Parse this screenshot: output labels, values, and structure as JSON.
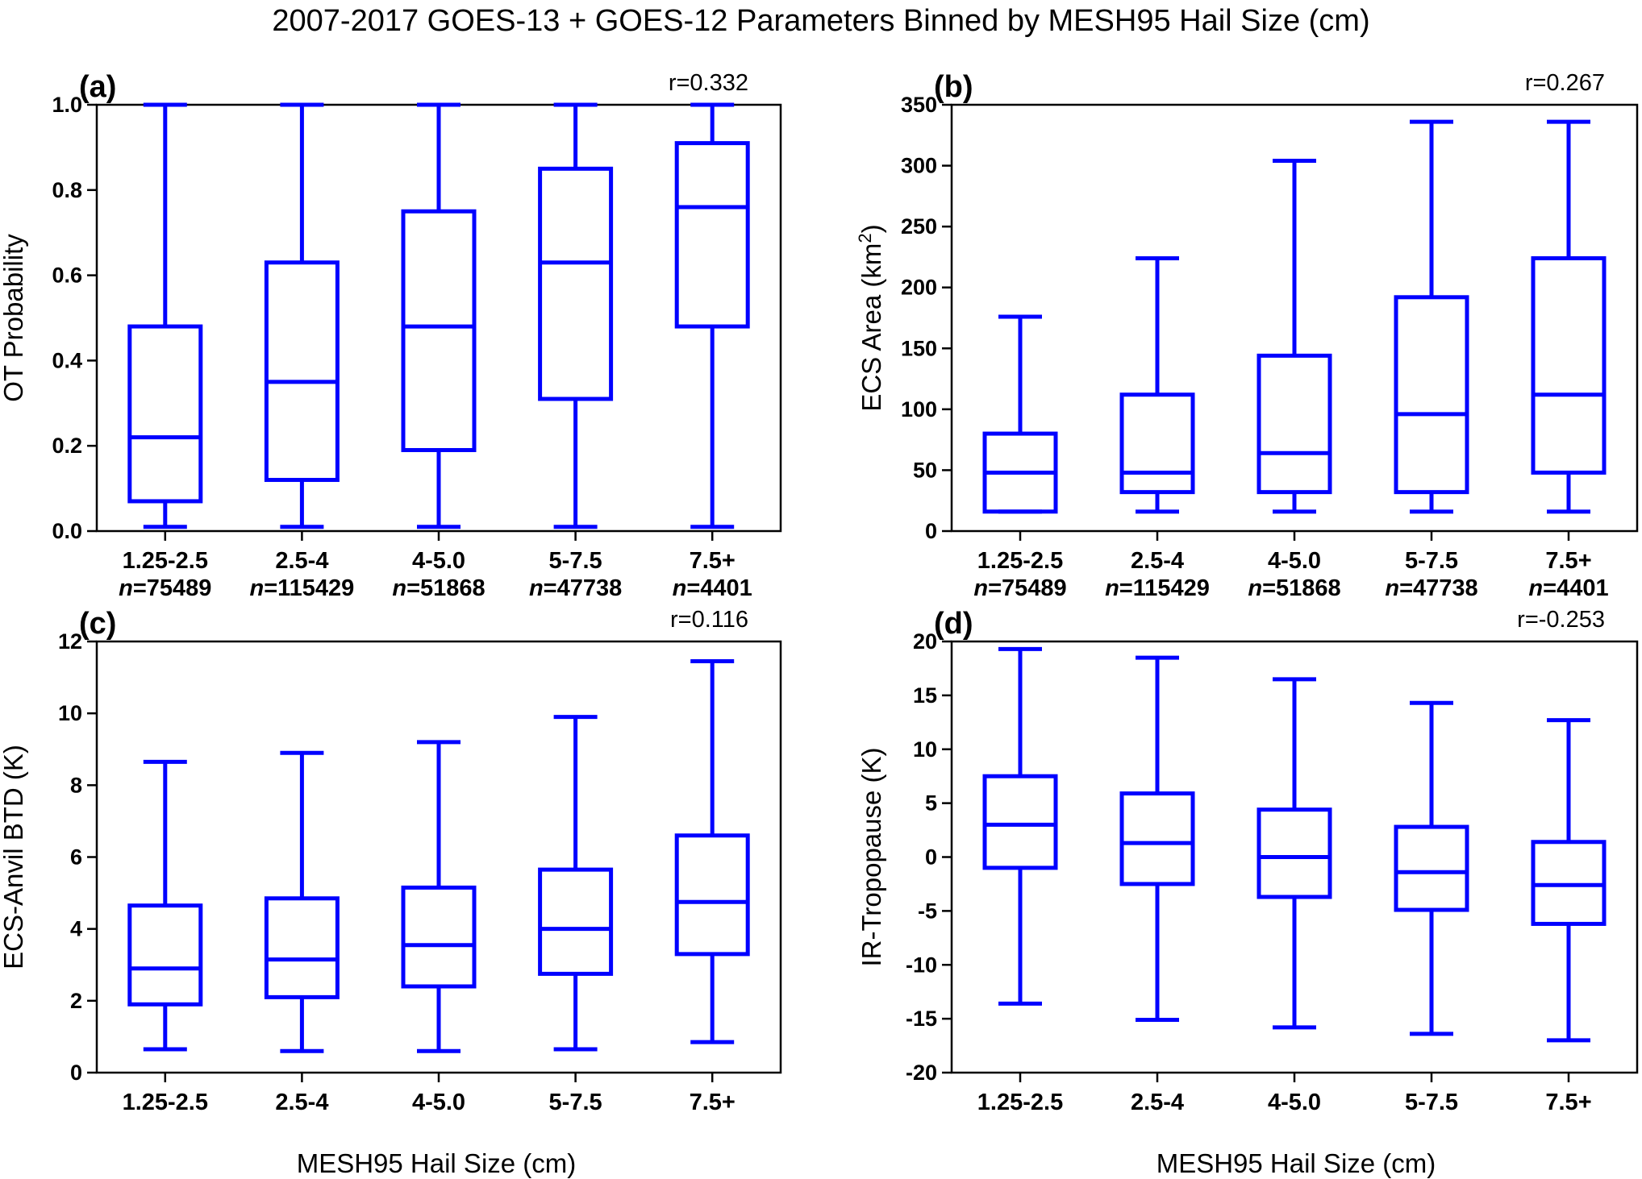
{
  "suptitle": "2007-2017 GOES-13 + GOES-12 Parameters Binned by MESH95 Hail Size (cm)",
  "xlabel": "MESH95 Hail Size (cm)",
  "colors": {
    "box": "#0000ff",
    "axes": "#000000"
  },
  "chart_data": [
    {
      "type": "box",
      "panel": "(a)",
      "r_label": "r=0.332",
      "ylabel": "OT Probability",
      "ylim": [
        0.0,
        1.0
      ],
      "yticks": [
        "0.0",
        "0.2",
        "0.4",
        "0.6",
        "0.8",
        "1.0"
      ],
      "ytick_values": [
        0.0,
        0.2,
        0.4,
        0.6,
        0.8,
        1.0
      ],
      "categories": [
        "1.25-2.5",
        "2.5-4",
        "4-5.0",
        "5-7.5",
        "7.5+"
      ],
      "n_prefix": "n",
      "n_values": [
        "=75489",
        "=115429",
        "=51868",
        "=47738",
        "=4401"
      ],
      "boxes": [
        {
          "whislo": 0.01,
          "q1": 0.07,
          "med": 0.22,
          "q3": 0.48,
          "whishi": 1.0
        },
        {
          "whislo": 0.01,
          "q1": 0.12,
          "med": 0.35,
          "q3": 0.63,
          "whishi": 1.0
        },
        {
          "whislo": 0.01,
          "q1": 0.19,
          "med": 0.48,
          "q3": 0.75,
          "whishi": 1.0
        },
        {
          "whislo": 0.01,
          "q1": 0.31,
          "med": 0.63,
          "q3": 0.85,
          "whishi": 1.0
        },
        {
          "whislo": 0.01,
          "q1": 0.48,
          "med": 0.76,
          "q3": 0.91,
          "whishi": 1.0
        }
      ]
    },
    {
      "type": "box",
      "panel": "(b)",
      "r_label": "r=0.267",
      "ylabel": "ECS Area (km",
      "ylabel_sup": "2",
      "ylabel_end": ")",
      "ylim": [
        0,
        350
      ],
      "yticks": [
        "0",
        "50",
        "100",
        "150",
        "200",
        "250",
        "300",
        "350"
      ],
      "ytick_values": [
        0,
        50,
        100,
        150,
        200,
        250,
        300,
        350
      ],
      "categories": [
        "1.25-2.5",
        "2.5-4",
        "4-5.0",
        "5-7.5",
        "7.5+"
      ],
      "n_prefix": "n",
      "n_values": [
        "=75489",
        "=115429",
        "=51868",
        "=47738",
        "=4401"
      ],
      "boxes": [
        {
          "whislo": 16,
          "q1": 16,
          "med": 48,
          "q3": 80,
          "whishi": 176
        },
        {
          "whislo": 16,
          "q1": 32,
          "med": 48,
          "q3": 112,
          "whishi": 224
        },
        {
          "whislo": 16,
          "q1": 32,
          "med": 64,
          "q3": 144,
          "whishi": 304
        },
        {
          "whislo": 16,
          "q1": 32,
          "med": 96,
          "q3": 192,
          "whishi": 336
        },
        {
          "whislo": 16,
          "q1": 48,
          "med": 112,
          "q3": 224,
          "whishi": 336
        }
      ]
    },
    {
      "type": "box",
      "panel": "(c)",
      "r_label": "r=0.116",
      "ylabel": "ECS-Anvil BTD (K)",
      "ylim": [
        0,
        12
      ],
      "yticks": [
        "0",
        "2",
        "4",
        "6",
        "8",
        "10",
        "12"
      ],
      "ytick_values": [
        0,
        2,
        4,
        6,
        8,
        10,
        12
      ],
      "categories": [
        "1.25-2.5",
        "2.5-4",
        "4-5.0",
        "5-7.5",
        "7.5+"
      ],
      "boxes": [
        {
          "whislo": 0.65,
          "q1": 1.9,
          "med": 2.9,
          "q3": 4.65,
          "whishi": 8.65
        },
        {
          "whislo": 0.6,
          "q1": 2.1,
          "med": 3.15,
          "q3": 4.85,
          "whishi": 8.9
        },
        {
          "whislo": 0.6,
          "q1": 2.4,
          "med": 3.55,
          "q3": 5.15,
          "whishi": 9.2
        },
        {
          "whislo": 0.65,
          "q1": 2.75,
          "med": 4.0,
          "q3": 5.65,
          "whishi": 9.9
        },
        {
          "whislo": 0.85,
          "q1": 3.3,
          "med": 4.75,
          "q3": 6.6,
          "whishi": 11.45
        }
      ]
    },
    {
      "type": "box",
      "panel": "(d)",
      "r_label": "r=-0.253",
      "ylabel": "IR-Tropopause (K)",
      "ylim": [
        -20,
        20
      ],
      "yticks": [
        "-20",
        "-15",
        "-10",
        "-5",
        "0",
        "5",
        "10",
        "15",
        "20"
      ],
      "ytick_values": [
        -20,
        -15,
        -10,
        -5,
        0,
        5,
        10,
        15,
        20
      ],
      "categories": [
        "1.25-2.5",
        "2.5-4",
        "4-5.0",
        "5-7.5",
        "7.5+"
      ],
      "boxes": [
        {
          "whislo": -13.6,
          "q1": -1.0,
          "med": 3.0,
          "q3": 7.5,
          "whishi": 19.3
        },
        {
          "whislo": -15.1,
          "q1": -2.5,
          "med": 1.3,
          "q3": 5.9,
          "whishi": 18.5
        },
        {
          "whislo": -15.8,
          "q1": -3.7,
          "med": 0.0,
          "q3": 4.4,
          "whishi": 16.5
        },
        {
          "whislo": -16.4,
          "q1": -4.9,
          "med": -1.4,
          "q3": 2.8,
          "whishi": 14.3
        },
        {
          "whislo": -17.0,
          "q1": -6.2,
          "med": -2.6,
          "q3": 1.4,
          "whishi": 12.7
        }
      ]
    }
  ]
}
